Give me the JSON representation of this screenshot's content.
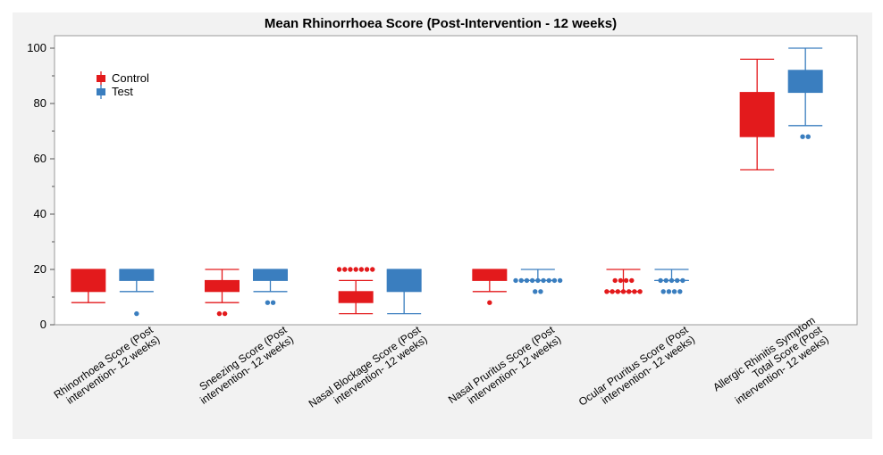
{
  "chart_data": {
    "type": "boxplot",
    "title": "Mean Rhinorrhoea Score (Post-Intervention - 12 weeks)",
    "ylim": [
      0,
      100
    ],
    "yticks": [
      0,
      20,
      40,
      60,
      80,
      100
    ],
    "grid": false,
    "legend_position": "top-left",
    "categories": [
      [
        "Rhinorrhoea Score (Post",
        "intervention- 12 weeks)"
      ],
      [
        "Sneezing Score (Post",
        "intervention- 12 weeks)"
      ],
      [
        "Nasal Blockage Score (Post",
        "intervention- 12 weeks)"
      ],
      [
        "Nasal Pruritus Score (Post",
        "intervention- 12 weeks)"
      ],
      [
        "Ocular Pruritus Score (Post",
        "intervention- 12 weeks)"
      ],
      [
        "Allergic Rhinitis Symptom",
        "Total Score (Post",
        "intervention- 12 weeks)"
      ]
    ],
    "series": [
      {
        "name": "Control",
        "color": "#e31a1c",
        "boxes": [
          {
            "whisker_low": 8,
            "q1": 12,
            "median": 12,
            "q3": 20,
            "whisker_high": 20,
            "outliers": []
          },
          {
            "whisker_low": 8,
            "q1": 12,
            "median": 12,
            "q3": 16,
            "whisker_high": 20,
            "outliers": [
              4,
              4
            ]
          },
          {
            "whisker_low": 4,
            "q1": 8,
            "median": 8,
            "q3": 12,
            "whisker_high": 16,
            "outliers": [
              20,
              20,
              20,
              20,
              20,
              20,
              20
            ]
          },
          {
            "whisker_low": 12,
            "q1": 16,
            "median": 16,
            "q3": 20,
            "whisker_high": 20,
            "outliers": [
              8
            ]
          },
          {
            "whisker_low": 12,
            "q1": 12,
            "median": 12,
            "q3": 12,
            "whisker_high": 20,
            "outliers": [
              16,
              16,
              16,
              16,
              12,
              12,
              12,
              12,
              12,
              12,
              12
            ]
          },
          {
            "whisker_low": 56,
            "q1": 68,
            "median": 68,
            "q3": 84,
            "whisker_high": 96,
            "outliers": []
          }
        ]
      },
      {
        "name": "Test",
        "color": "#3a7ebf",
        "boxes": [
          {
            "whisker_low": 12,
            "q1": 16,
            "median": 16,
            "q3": 20,
            "whisker_high": 20,
            "outliers": [
              4
            ]
          },
          {
            "whisker_low": 12,
            "q1": 16,
            "median": 16,
            "q3": 20,
            "whisker_high": 20,
            "outliers": [
              8,
              8
            ]
          },
          {
            "whisker_low": 4,
            "q1": 12,
            "median": 12,
            "q3": 20,
            "whisker_high": 20,
            "outliers": []
          },
          {
            "whisker_low": 16,
            "q1": 16,
            "median": 16,
            "q3": 16,
            "whisker_high": 20,
            "outliers": [
              16,
              16,
              16,
              16,
              16,
              16,
              16,
              16,
              16,
              12,
              12
            ]
          },
          {
            "whisker_low": 16,
            "q1": 16,
            "median": 16,
            "q3": 16,
            "whisker_high": 20,
            "outliers": [
              16,
              16,
              16,
              16,
              16,
              12,
              12,
              12,
              12
            ]
          },
          {
            "whisker_low": 72,
            "q1": 84,
            "median": 84,
            "q3": 92,
            "whisker_high": 100,
            "outliers": [
              68,
              68
            ]
          }
        ]
      }
    ]
  }
}
